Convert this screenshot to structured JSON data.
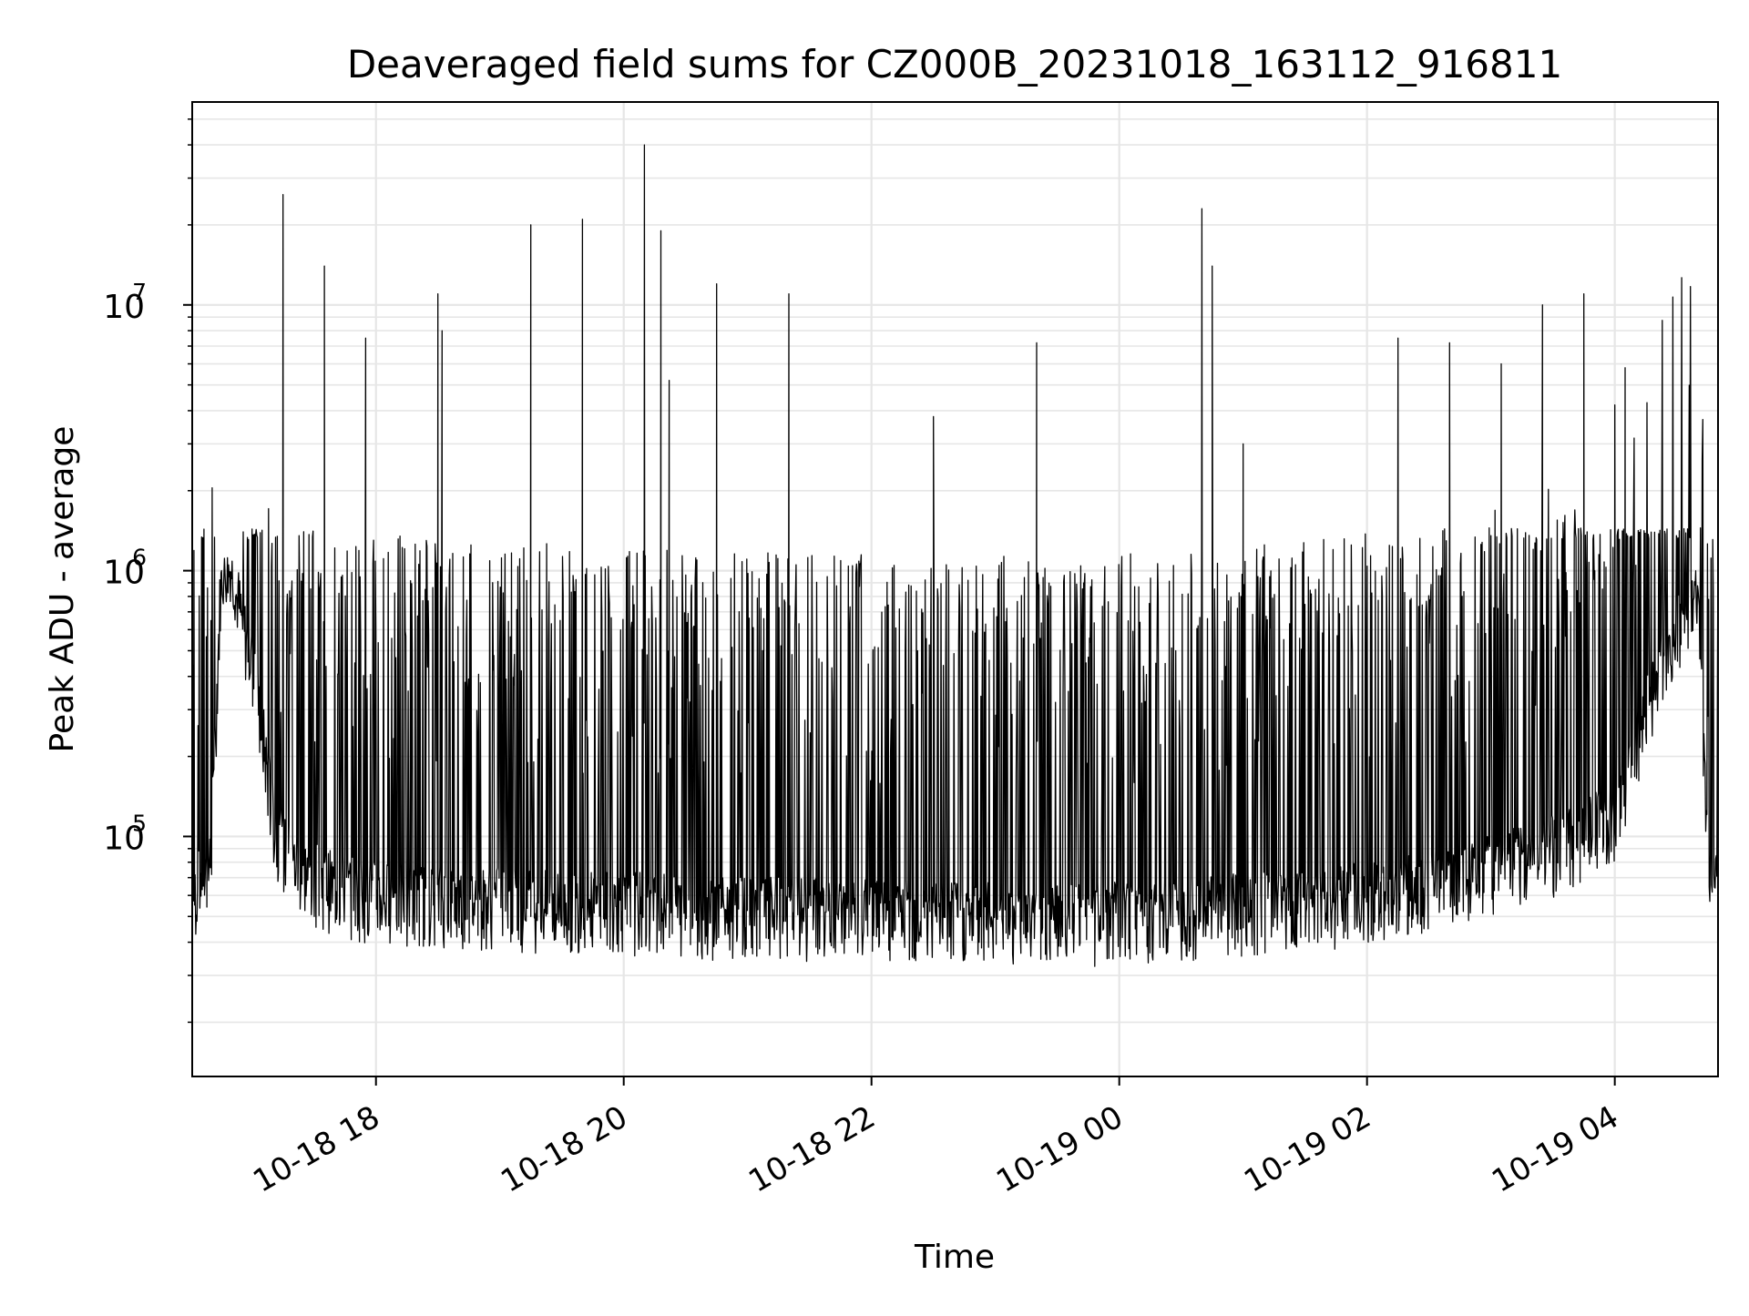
{
  "chart_data": {
    "type": "line",
    "title": "Deaveraged field sums for CZ000B_20231018_163112_916811",
    "xlabel": "Time",
    "ylabel": "Peak ADU - average",
    "x_tick_labels": [
      "10-18 18",
      "10-18 20",
      "10-18 22",
      "10-19 00",
      "10-19 02",
      "10-19 04"
    ],
    "x_ticks": [
      "2023-10-18T18:00",
      "2023-10-18T20:00",
      "2023-10-18T22:00",
      "2023-10-19T00:00",
      "2023-10-19T02:00",
      "2023-10-19T04:00"
    ],
    "xlim": [
      "2023-10-18T16:31",
      "2023-10-19T04:50"
    ],
    "y_scale": "log",
    "y_tick_base": "10",
    "y_tick_exponents": [
      "5",
      "6",
      "7"
    ],
    "ylim": [
      12500,
      58000000
    ],
    "grid": true,
    "line_color": "#000000",
    "series": [
      {
        "x": [
          "2023-10-18T16:31",
          "2023-10-18T16:35",
          "2023-10-18T16:40",
          "2023-10-18T16:45",
          "2023-10-18T16:50",
          "2023-10-18T16:55",
          "2023-10-18T17:00",
          "2023-10-18T17:05",
          "2023-10-18T17:10",
          "2023-10-18T17:15",
          "2023-10-18T17:20",
          "2023-10-18T17:30",
          "2023-10-18T17:40",
          "2023-10-18T17:50",
          "2023-10-18T18:00",
          "2023-10-18T18:30",
          "2023-10-18T19:00",
          "2023-10-18T19:30",
          "2023-10-18T20:00",
          "2023-10-18T20:30",
          "2023-10-18T21:00",
          "2023-10-18T21:30",
          "2023-10-18T22:00",
          "2023-10-18T22:30",
          "2023-10-18T23:00",
          "2023-10-18T23:30",
          "2023-10-19T00:00",
          "2023-10-19T00:30",
          "2023-10-19T01:00",
          "2023-10-19T01:30",
          "2023-10-19T02:00",
          "2023-10-19T02:30",
          "2023-10-19T03:00",
          "2023-10-19T03:30",
          "2023-10-19T04:00",
          "2023-10-19T04:20",
          "2023-10-19T04:40",
          "2023-10-19T04:45",
          "2023-10-19T04:50"
        ],
        "y": [
          55000,
          70000,
          80000,
          1000000,
          1100000,
          650000,
          450000,
          250000,
          120000,
          90000,
          80000,
          70000,
          65000,
          62000,
          60000,
          58000,
          57000,
          55000,
          55000,
          53000,
          52000,
          52000,
          51000,
          50000,
          50000,
          49000,
          50000,
          52000,
          54000,
          56000,
          60000,
          65000,
          75000,
          90000,
          120000,
          400000,
          900000,
          80000,
          60000
        ],
        "peaks": [
          {
            "x": "2023-10-18T17:15",
            "y": 26000000
          },
          {
            "x": "2023-10-18T17:35",
            "y": 14000000
          },
          {
            "x": "2023-10-18T17:55",
            "y": 7500000
          },
          {
            "x": "2023-10-18T18:30",
            "y": 11000000
          },
          {
            "x": "2023-10-18T18:32",
            "y": 8000000
          },
          {
            "x": "2023-10-18T19:15",
            "y": 20000000
          },
          {
            "x": "2023-10-18T19:40",
            "y": 21000000
          },
          {
            "x": "2023-10-18T20:10",
            "y": 40000000
          },
          {
            "x": "2023-10-18T20:18",
            "y": 19000000
          },
          {
            "x": "2023-10-18T20:22",
            "y": 5200000
          },
          {
            "x": "2023-10-18T20:45",
            "y": 12000000
          },
          {
            "x": "2023-10-18T21:20",
            "y": 11000000
          },
          {
            "x": "2023-10-18T22:30",
            "y": 3800000
          },
          {
            "x": "2023-10-18T23:20",
            "y": 7200000
          },
          {
            "x": "2023-10-19T00:40",
            "y": 23000000
          },
          {
            "x": "2023-10-19T00:45",
            "y": 14000000
          },
          {
            "x": "2023-10-19T01:00",
            "y": 3000000
          },
          {
            "x": "2023-10-19T02:15",
            "y": 7500000
          },
          {
            "x": "2023-10-19T02:40",
            "y": 7200000
          },
          {
            "x": "2023-10-19T03:05",
            "y": 6000000
          },
          {
            "x": "2023-10-19T03:25",
            "y": 10000000
          },
          {
            "x": "2023-10-19T03:45",
            "y": 11000000
          },
          {
            "x": "2023-10-19T04:00",
            "y": 4200000
          },
          {
            "x": "2023-10-19T04:05",
            "y": 5800000
          }
        ]
      }
    ]
  }
}
